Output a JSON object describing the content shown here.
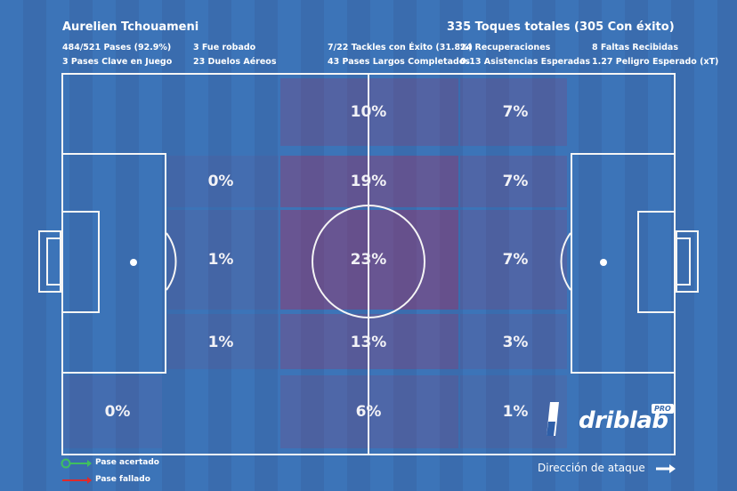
{
  "player_name": "Aurelien Tchouameni",
  "total_touches": "335 Toques totales (305 Con éxito)",
  "stats": [
    "484/521 Pases (92.9%)",
    "3 Fue robado",
    "7/22 Tackles con Éxito (31.8%)",
    "24 Recuperaciones",
    "8 Faltas Recibidas",
    "3 Pases Clave en Juego",
    "23 Duelos Aéreos",
    "43 Pases Largos Completados",
    "0.13 Asistencias Esperadas",
    "1.27 Peligro Esperado (xT)"
  ],
  "zones": [
    {
      "label": "10%",
      "value": 10
    },
    {
      "label": "7%",
      "value": 7
    },
    {
      "label": "0%",
      "value": 0
    },
    {
      "label": "19%",
      "value": 19
    },
    {
      "label": "7%",
      "value": 7
    },
    {
      "label": "1%",
      "value": 1
    },
    {
      "label": "23%",
      "value": 23
    },
    {
      "label": "7%",
      "value": 7
    },
    {
      "label": "1%",
      "value": 1
    },
    {
      "label": "13%",
      "value": 13
    },
    {
      "label": "3%",
      "value": 3
    },
    {
      "label": "0%",
      "value": 0
    },
    {
      "label": "6%",
      "value": 6
    },
    {
      "label": "1%",
      "value": 1
    }
  ],
  "legend": {
    "success": "Pase acertado",
    "fail": "Pase fallado",
    "success_color": "#3fbf5f",
    "fail_color": "#e02a2a"
  },
  "attack_direction": "Dirección de ataque",
  "brand": {
    "name": "driblab",
    "badge": "PRO"
  }
}
